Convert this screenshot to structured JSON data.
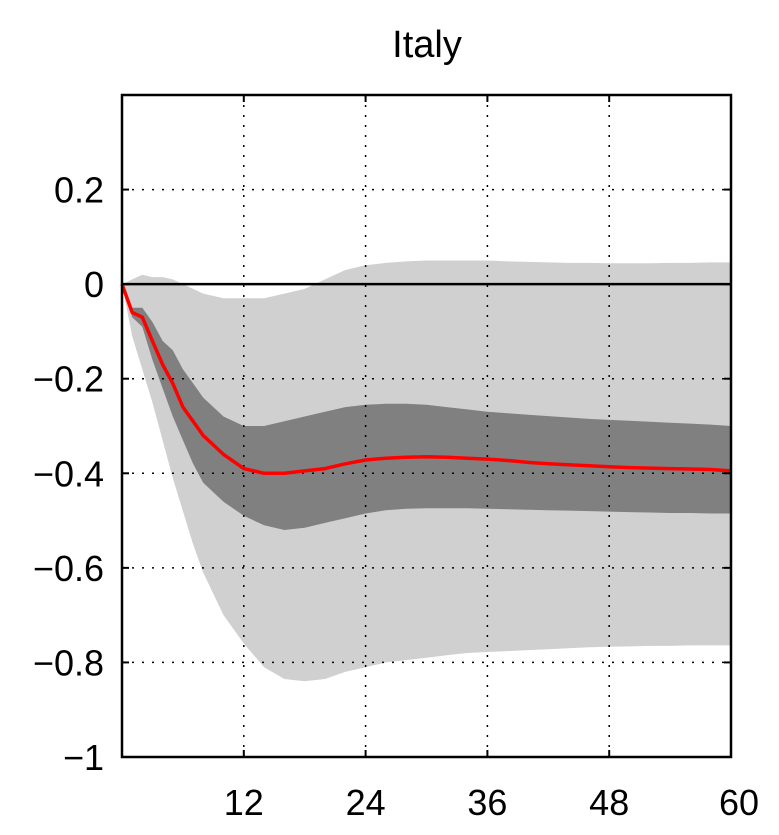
{
  "chart_data": {
    "type": "line",
    "title": "Italy",
    "xlabel": "",
    "ylabel": "",
    "xlim": [
      0,
      60
    ],
    "ylim": [
      -1,
      0.4
    ],
    "x_ticks": [
      12,
      24,
      36,
      48,
      60
    ],
    "x_tick_labels": [
      "12",
      "24",
      "36",
      "48",
      "60"
    ],
    "y_ticks": [
      0.2,
      0,
      -0.2,
      -0.4,
      -0.6,
      -0.8,
      -1
    ],
    "y_tick_labels": [
      "0.2",
      "0",
      "−0.2",
      "−0.4",
      "−0.6",
      "−0.8",
      "−1"
    ],
    "grid": true,
    "zero_line": true,
    "colors": {
      "median": "#ff0000",
      "outer_band": "#d0d0d0",
      "inner_band": "#808080",
      "zero_line": "#000000"
    },
    "x": [
      0,
      1,
      2,
      3,
      4,
      5,
      6,
      7,
      8,
      10,
      12,
      14,
      16,
      18,
      20,
      22,
      24,
      26,
      28,
      30,
      32,
      34,
      36,
      38,
      40,
      42,
      44,
      46,
      48,
      50,
      52,
      54,
      56,
      58,
      60
    ],
    "median": [
      0,
      -0.06,
      -0.07,
      -0.12,
      -0.17,
      -0.21,
      -0.26,
      -0.29,
      -0.32,
      -0.36,
      -0.39,
      -0.4,
      -0.4,
      -0.395,
      -0.39,
      -0.38,
      -0.372,
      -0.368,
      -0.366,
      -0.365,
      -0.366,
      -0.368,
      -0.37,
      -0.373,
      -0.377,
      -0.38,
      -0.382,
      -0.384,
      -0.386,
      -0.388,
      -0.389,
      -0.39,
      -0.391,
      -0.392,
      -0.395
    ],
    "inner_upper": [
      0,
      -0.05,
      -0.05,
      -0.08,
      -0.12,
      -0.14,
      -0.18,
      -0.21,
      -0.24,
      -0.28,
      -0.3,
      -0.3,
      -0.29,
      -0.28,
      -0.27,
      -0.26,
      -0.255,
      -0.253,
      -0.253,
      -0.255,
      -0.26,
      -0.265,
      -0.27,
      -0.273,
      -0.276,
      -0.279,
      -0.282,
      -0.285,
      -0.287,
      -0.289,
      -0.291,
      -0.293,
      -0.295,
      -0.297,
      -0.3
    ],
    "inner_lower": [
      0,
      -0.07,
      -0.09,
      -0.16,
      -0.22,
      -0.28,
      -0.33,
      -0.38,
      -0.42,
      -0.46,
      -0.49,
      -0.51,
      -0.52,
      -0.515,
      -0.505,
      -0.495,
      -0.485,
      -0.478,
      -0.475,
      -0.474,
      -0.474,
      -0.474,
      -0.475,
      -0.476,
      -0.477,
      -0.478,
      -0.479,
      -0.48,
      -0.481,
      -0.482,
      -0.483,
      -0.484,
      -0.484,
      -0.485,
      -0.485
    ],
    "outer_upper": [
      0,
      0.01,
      0.02,
      0.015,
      0.015,
      0.01,
      0.0,
      -0.01,
      -0.02,
      -0.03,
      -0.03,
      -0.03,
      -0.02,
      -0.01,
      0.01,
      0.03,
      0.04,
      0.045,
      0.048,
      0.05,
      0.05,
      0.05,
      0.05,
      0.048,
      0.047,
      0.046,
      0.045,
      0.045,
      0.044,
      0.044,
      0.044,
      0.045,
      0.045,
      0.046,
      0.046
    ],
    "outer_lower": [
      0,
      -0.11,
      -0.18,
      -0.25,
      -0.33,
      -0.41,
      -0.48,
      -0.55,
      -0.61,
      -0.7,
      -0.76,
      -0.81,
      -0.835,
      -0.84,
      -0.835,
      -0.82,
      -0.81,
      -0.8,
      -0.795,
      -0.79,
      -0.785,
      -0.78,
      -0.778,
      -0.776,
      -0.774,
      -0.772,
      -0.77,
      -0.768,
      -0.767,
      -0.766,
      -0.765,
      -0.765,
      -0.764,
      -0.764,
      -0.764
    ]
  }
}
